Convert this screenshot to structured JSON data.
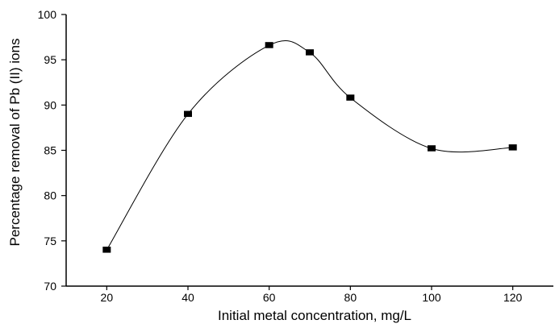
{
  "chart_data": {
    "type": "scatter",
    "title": "",
    "xlabel": "Initial metal concentration, mg/L",
    "ylabel": "Percentage removal of Pb (II) ions",
    "xlim": [
      10,
      130
    ],
    "ylim": [
      70,
      100
    ],
    "x_ticks": [
      20,
      40,
      60,
      80,
      100,
      120
    ],
    "y_ticks": [
      70,
      75,
      80,
      85,
      90,
      95,
      100
    ],
    "grid": false,
    "legend": "none",
    "marker": "square",
    "marker_color": "#000000",
    "line_style": "smooth",
    "line_color": "#000000",
    "series": [
      {
        "x": [
          20,
          40,
          60,
          70,
          80,
          100,
          120
        ],
        "y": [
          74.0,
          89.0,
          96.6,
          95.8,
          90.8,
          85.2,
          85.3
        ]
      }
    ]
  }
}
